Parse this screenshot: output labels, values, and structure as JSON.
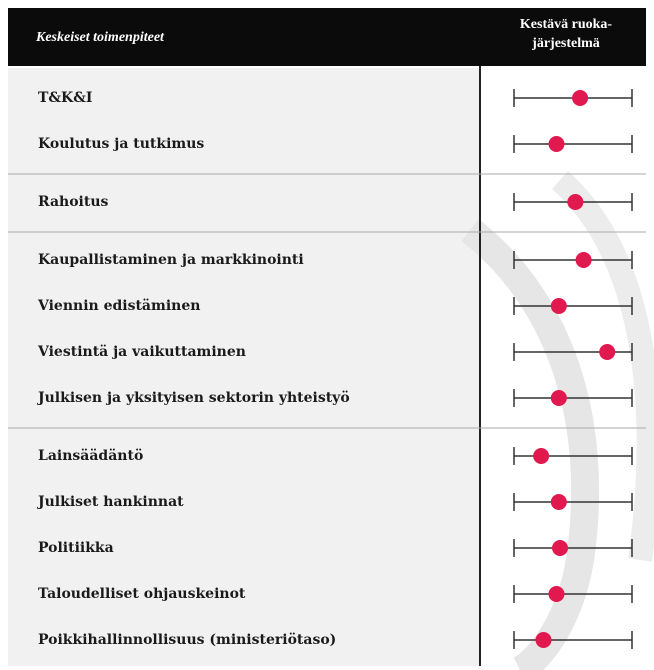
{
  "chart_data": {
    "type": "dot",
    "header": "Keskeiset toimenpiteet",
    "column_header": [
      "Kestävä ruoka-",
      "järjestelmä"
    ],
    "xlim": [
      0,
      1
    ],
    "color": "#e2194f",
    "groups": [
      {
        "categories": [
          "T&K&I",
          "Koulutus ja tutkimus"
        ],
        "values": [
          0.56,
          0.36
        ]
      },
      {
        "categories": [
          "Rahoitus"
        ],
        "values": [
          0.52
        ]
      },
      {
        "categories": [
          "Kaupallistaminen ja markkinointi",
          "Viennin edistäminen",
          "Viestintä ja vaikuttaminen",
          "Julkisen ja yksityisen sektorin yhteistyö"
        ],
        "values": [
          0.59,
          0.38,
          0.79,
          0.38
        ]
      },
      {
        "categories": [
          "Lainsäädäntö",
          "Julkiset hankinnat",
          "Politiikka",
          "Taloudelliset ohjauskeinot",
          "Poikkihallinnollisuus (ministeriötaso)"
        ],
        "values": [
          0.23,
          0.38,
          0.39,
          0.36,
          0.25
        ]
      }
    ]
  }
}
